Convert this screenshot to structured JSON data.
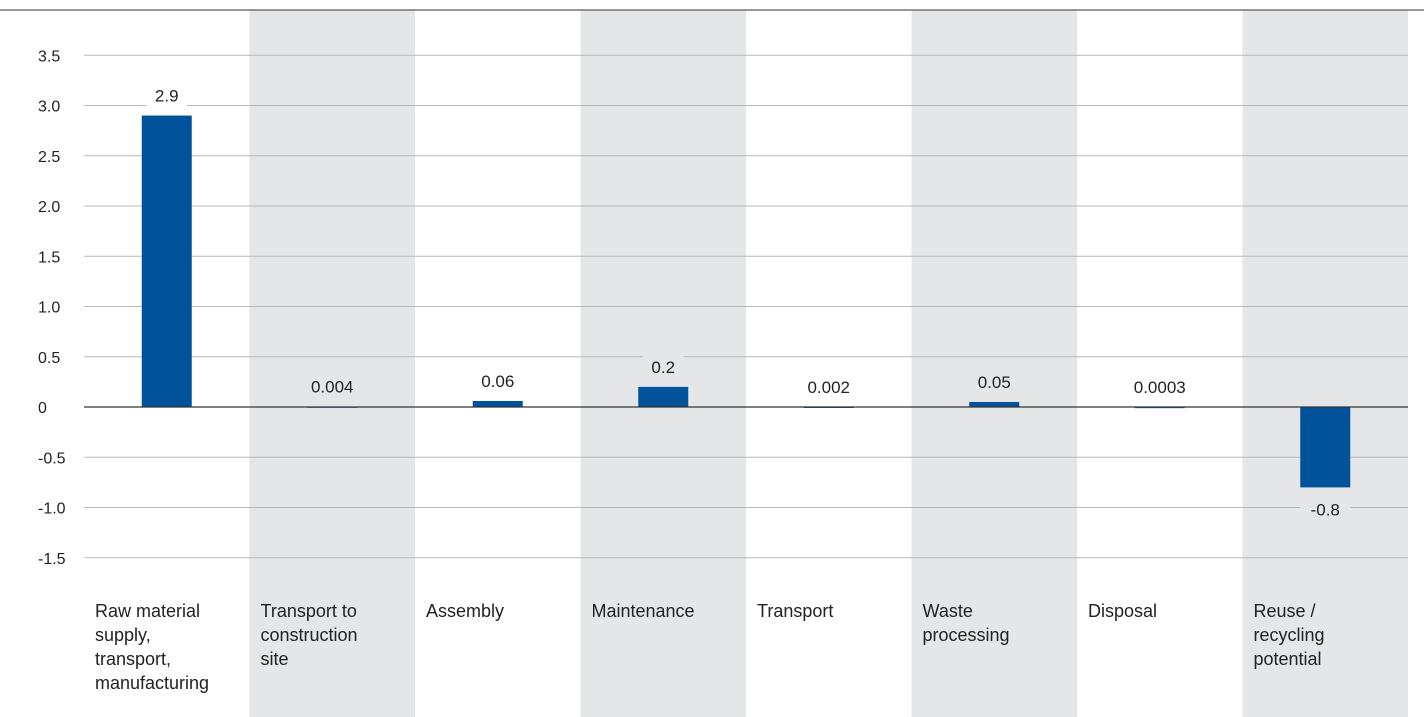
{
  "chart_data": {
    "type": "bar",
    "categories": [
      "Raw material supply, transport, manufacturing",
      "Transport to construction site",
      "Assembly",
      "Maintenance",
      "Transport",
      "Waste processing",
      "Disposal",
      "Reuse / recycling potential"
    ],
    "category_lines": [
      [
        "Raw material",
        "supply,",
        "transport,",
        "manufacturing"
      ],
      [
        "Transport to",
        "construction",
        "site"
      ],
      [
        "Assembly"
      ],
      [
        "Maintenance"
      ],
      [
        "Transport"
      ],
      [
        "Waste",
        "processing"
      ],
      [
        "Disposal"
      ],
      [
        "Reuse /",
        "recycling",
        "potential"
      ]
    ],
    "values": [
      2.9,
      0.004,
      0.06,
      0.2,
      0.002,
      0.05,
      0.0003,
      -0.8
    ],
    "value_labels": [
      "2.9",
      "0.004",
      "0.06",
      "0.2",
      "0.002",
      "0.05",
      "0.0003",
      "-0.8"
    ],
    "yticks": [
      3.5,
      3.0,
      2.5,
      2.0,
      1.5,
      1.0,
      0.5,
      0,
      -0.5,
      -1.0,
      -1.5
    ],
    "ytick_labels": [
      "3.5",
      "3.0",
      "2.5",
      "2.0",
      "1.5",
      "1.0",
      "0.5",
      "0",
      "-0.5",
      "-1.0",
      "-1.5"
    ],
    "ylim": [
      -1.5,
      3.5
    ],
    "grid": true,
    "title": "",
    "xlabel": "",
    "ylabel": "",
    "colors": {
      "bar": "#00539b",
      "band": "#e5e6e8",
      "grid": "#b8b8b8",
      "axis": "#333333",
      "text": "#222222"
    }
  }
}
